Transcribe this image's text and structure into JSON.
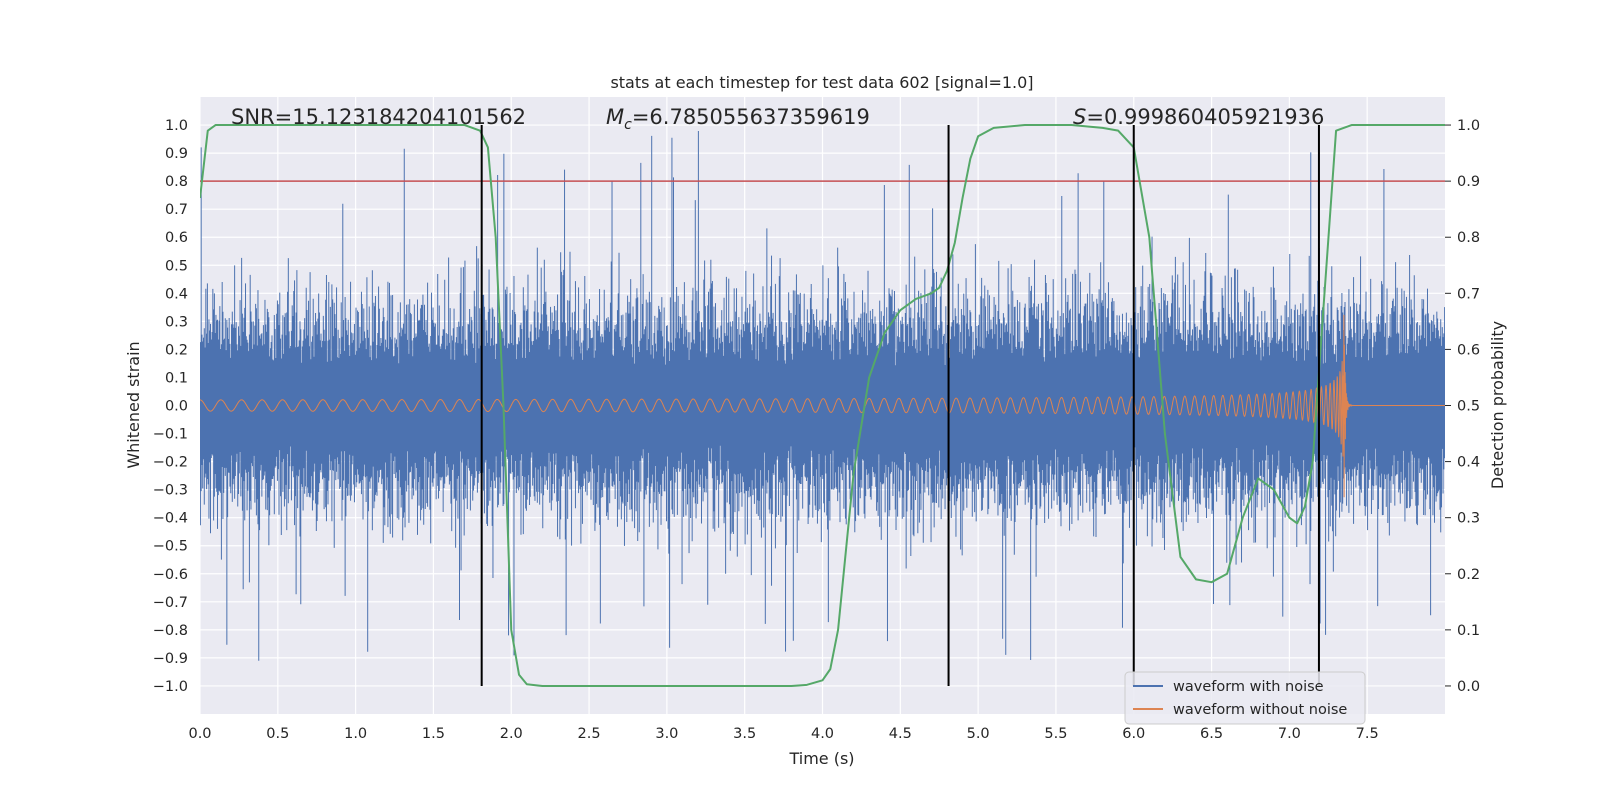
{
  "chart_data": {
    "type": "line",
    "title": "stats at each timestep for test data 602 [signal=1.0]",
    "xlabel": "Time (s)",
    "ylabel": "Whitened strain",
    "y2label": "Detection probability",
    "xlim": [
      0.0,
      8.0
    ],
    "ylim": [
      -1.1,
      1.1
    ],
    "y2lim": [
      -0.05,
      1.05
    ],
    "xticks": [
      "0.0",
      "0.5",
      "1.0",
      "1.5",
      "2.0",
      "2.5",
      "3.0",
      "3.5",
      "4.0",
      "4.5",
      "5.0",
      "5.5",
      "6.0",
      "6.5",
      "7.0",
      "7.5"
    ],
    "yticks": [
      "1.0",
      "0.9",
      "0.8",
      "0.7",
      "0.6",
      "0.5",
      "0.4",
      "0.3",
      "0.2",
      "0.1",
      "0.0",
      "−0.1",
      "−0.2",
      "−0.3",
      "−0.4",
      "−0.5",
      "−0.6",
      "−0.7",
      "−0.8",
      "−0.9",
      "−1.0"
    ],
    "y2ticks": [
      "1.0",
      "0.9",
      "0.8",
      "0.7",
      "0.6",
      "0.5",
      "0.4",
      "0.3",
      "0.2",
      "0.1",
      "0.0"
    ],
    "annotations": {
      "snr": "SNR=15.123184204101562",
      "mc_symbol": "M",
      "mc_sub": "c",
      "mc_value": "=6.785055637359619",
      "s_symbol": "S",
      "s_value": "=0.999860405921936"
    },
    "legend": {
      "placement": "bottom-right",
      "entries": [
        "waveform with noise",
        "waveform without noise"
      ]
    },
    "series": [
      {
        "name": "waveform with noise",
        "color": "#4c72b0",
        "kind": "noise",
        "typical_amplitude": 0.35,
        "peak_amplitude": 0.98
      },
      {
        "name": "waveform without noise",
        "color": "#dd8452",
        "kind": "chirp",
        "amp_start": 0.02,
        "amp_peak": 0.42,
        "merger_time": 7.35,
        "ringdown_until": 7.38
      },
      {
        "name": "detection probability",
        "color": "#55a868",
        "axis": "right",
        "x": [
          0.0,
          0.05,
          0.1,
          0.2,
          0.5,
          1.0,
          1.5,
          1.7,
          1.8,
          1.85,
          1.9,
          1.95,
          2.0,
          2.05,
          2.1,
          2.2,
          2.5,
          3.0,
          3.5,
          3.8,
          3.9,
          4.0,
          4.05,
          4.1,
          4.2,
          4.3,
          4.4,
          4.5,
          4.6,
          4.7,
          4.75,
          4.8,
          4.85,
          4.9,
          4.95,
          5.0,
          5.1,
          5.3,
          5.6,
          5.8,
          5.9,
          6.0,
          6.1,
          6.2,
          6.3,
          6.4,
          6.5,
          6.6,
          6.7,
          6.8,
          6.9,
          7.0,
          7.05,
          7.1,
          7.15,
          7.2,
          7.3,
          7.4,
          7.6,
          8.0
        ],
        "y": [
          0.87,
          0.99,
          1.0,
          1.0,
          1.0,
          1.0,
          1.0,
          1.0,
          0.99,
          0.96,
          0.8,
          0.5,
          0.1,
          0.02,
          0.003,
          0.0,
          0.0,
          0.0,
          0.0,
          0.0,
          0.002,
          0.01,
          0.03,
          0.1,
          0.38,
          0.55,
          0.63,
          0.67,
          0.69,
          0.7,
          0.71,
          0.74,
          0.79,
          0.87,
          0.94,
          0.98,
          0.995,
          1.0,
          1.0,
          0.995,
          0.99,
          0.96,
          0.8,
          0.45,
          0.23,
          0.19,
          0.185,
          0.2,
          0.3,
          0.37,
          0.35,
          0.3,
          0.29,
          0.32,
          0.4,
          0.6,
          0.99,
          1.0,
          1.0,
          1.0
        ]
      }
    ],
    "hlines": [
      {
        "axis": "right",
        "value": 0.9,
        "color": "#c44e52"
      }
    ],
    "vlines": [
      1.81,
      4.81,
      6.0,
      7.19
    ]
  }
}
